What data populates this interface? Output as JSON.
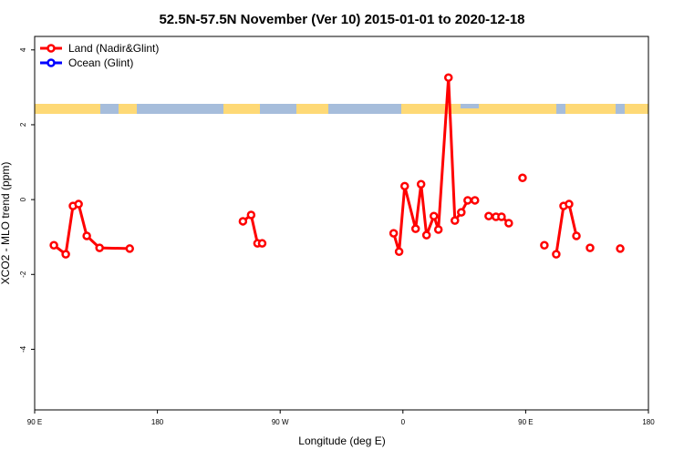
{
  "chart_data": {
    "type": "line",
    "title": "52.5N-57.5N November (Ver 10)   2015-01-01 to 2020-12-18",
    "x_label": "Longitude (deg E)",
    "y_label": "XCO2 - MLO trend (ppm)",
    "legend": "upper-left",
    "xlim": [
      90,
      540
    ],
    "xticks": [
      {
        "value": 90,
        "label": "90 E"
      },
      180,
      {
        "value": 270,
        "label": "90 W"
      },
      {
        "value": 360,
        "label": "0"
      },
      {
        "value": 450,
        "label": "90 E"
      },
      {
        "value": 540,
        "label": "180"
      }
    ],
    "ylim": [
      -5.62,
      4.36
    ],
    "yticks": [
      -4,
      -2,
      0,
      2,
      4
    ],
    "series": [
      {
        "name": "Land (Nadir&Glint)",
        "color": "#ff0000",
        "x": [
          104.1,
          112.8,
          118.1,
          122.2,
          128.2,
          137.6,
          159.7,
          null,
          242.7,
          248.7,
          253.4,
          256.8,
          null,
          353.2,
          357.2,
          361.3,
          369.3,
          373.3,
          377.3,
          382.7,
          386.0,
          393.4,
          398.1,
          402.8,
          407.5,
          412.8,
          null,
          422.9,
          428.2,
          432.3,
          437.6,
          null,
          447.7,
          null,
          463.7,
          null,
          472.4,
          477.8,
          481.8,
          487.2,
          null,
          497.2,
          null,
          519.3
        ],
        "values": [
          -1.22,
          -1.46,
          -0.17,
          -0.12,
          -0.97,
          -1.29,
          -1.31,
          null,
          -0.58,
          -0.41,
          -1.17,
          -1.17,
          null,
          -0.9,
          -1.39,
          0.36,
          -0.78,
          0.41,
          -0.95,
          -0.44,
          -0.8,
          3.26,
          -0.56,
          -0.34,
          -0.02,
          -0.02,
          null,
          -0.44,
          -0.46,
          -0.46,
          -0.63,
          null,
          0.58,
          null,
          -1.22,
          null,
          -1.46,
          -0.17,
          -0.12,
          -0.97,
          null,
          -1.29,
          null,
          -1.31
        ]
      },
      {
        "name": "Ocean (Glint)",
        "color": "#0000ff",
        "x": [],
        "values": []
      }
    ]
  }
}
